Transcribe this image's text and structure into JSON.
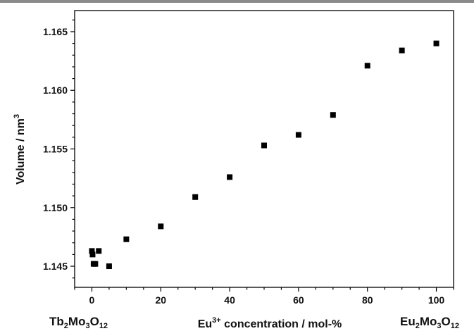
{
  "chart_data": {
    "type": "scatter",
    "title": "",
    "xlabel": {
      "prefix": "Eu",
      "sup": "3+",
      "suffix": " concentration / mol-%"
    },
    "ylabel": {
      "text": "Volume / nm",
      "sup": "3"
    },
    "xlim": [
      -5,
      105
    ],
    "ylim": [
      1.1432,
      1.1668
    ],
    "x_ticks": [
      0,
      20,
      40,
      60,
      80,
      100
    ],
    "x_tick_labels": [
      "0",
      "20",
      "40",
      "60",
      "80",
      "100"
    ],
    "y_ticks": [
      1.145,
      1.15,
      1.155,
      1.16,
      1.165
    ],
    "y_tick_labels": [
      "1.145",
      "1.150",
      "1.155",
      "1.160",
      "1.165"
    ],
    "grid": false,
    "left_end_label": {
      "parts": [
        "Tb",
        "2",
        "Mo",
        "3",
        "O",
        "12"
      ]
    },
    "right_end_label": {
      "parts": [
        "Eu",
        "2",
        "Mo",
        "3",
        "O",
        "12"
      ]
    },
    "series": [
      {
        "marker": "square",
        "color": "#000000",
        "points": [
          {
            "x": 0,
            "y": 1.1463
          },
          {
            "x": 0.2,
            "y": 1.146
          },
          {
            "x": 0.5,
            "y": 1.1452
          },
          {
            "x": 1,
            "y": 1.1452
          },
          {
            "x": 2,
            "y": 1.1463
          },
          {
            "x": 5,
            "y": 1.145
          },
          {
            "x": 10,
            "y": 1.1473
          },
          {
            "x": 20,
            "y": 1.1484
          },
          {
            "x": 30,
            "y": 1.1509
          },
          {
            "x": 40,
            "y": 1.1526
          },
          {
            "x": 50,
            "y": 1.1553
          },
          {
            "x": 60,
            "y": 1.1562
          },
          {
            "x": 70,
            "y": 1.1579
          },
          {
            "x": 80,
            "y": 1.1621
          },
          {
            "x": 90,
            "y": 1.1634
          },
          {
            "x": 100,
            "y": 1.164
          }
        ]
      }
    ]
  }
}
